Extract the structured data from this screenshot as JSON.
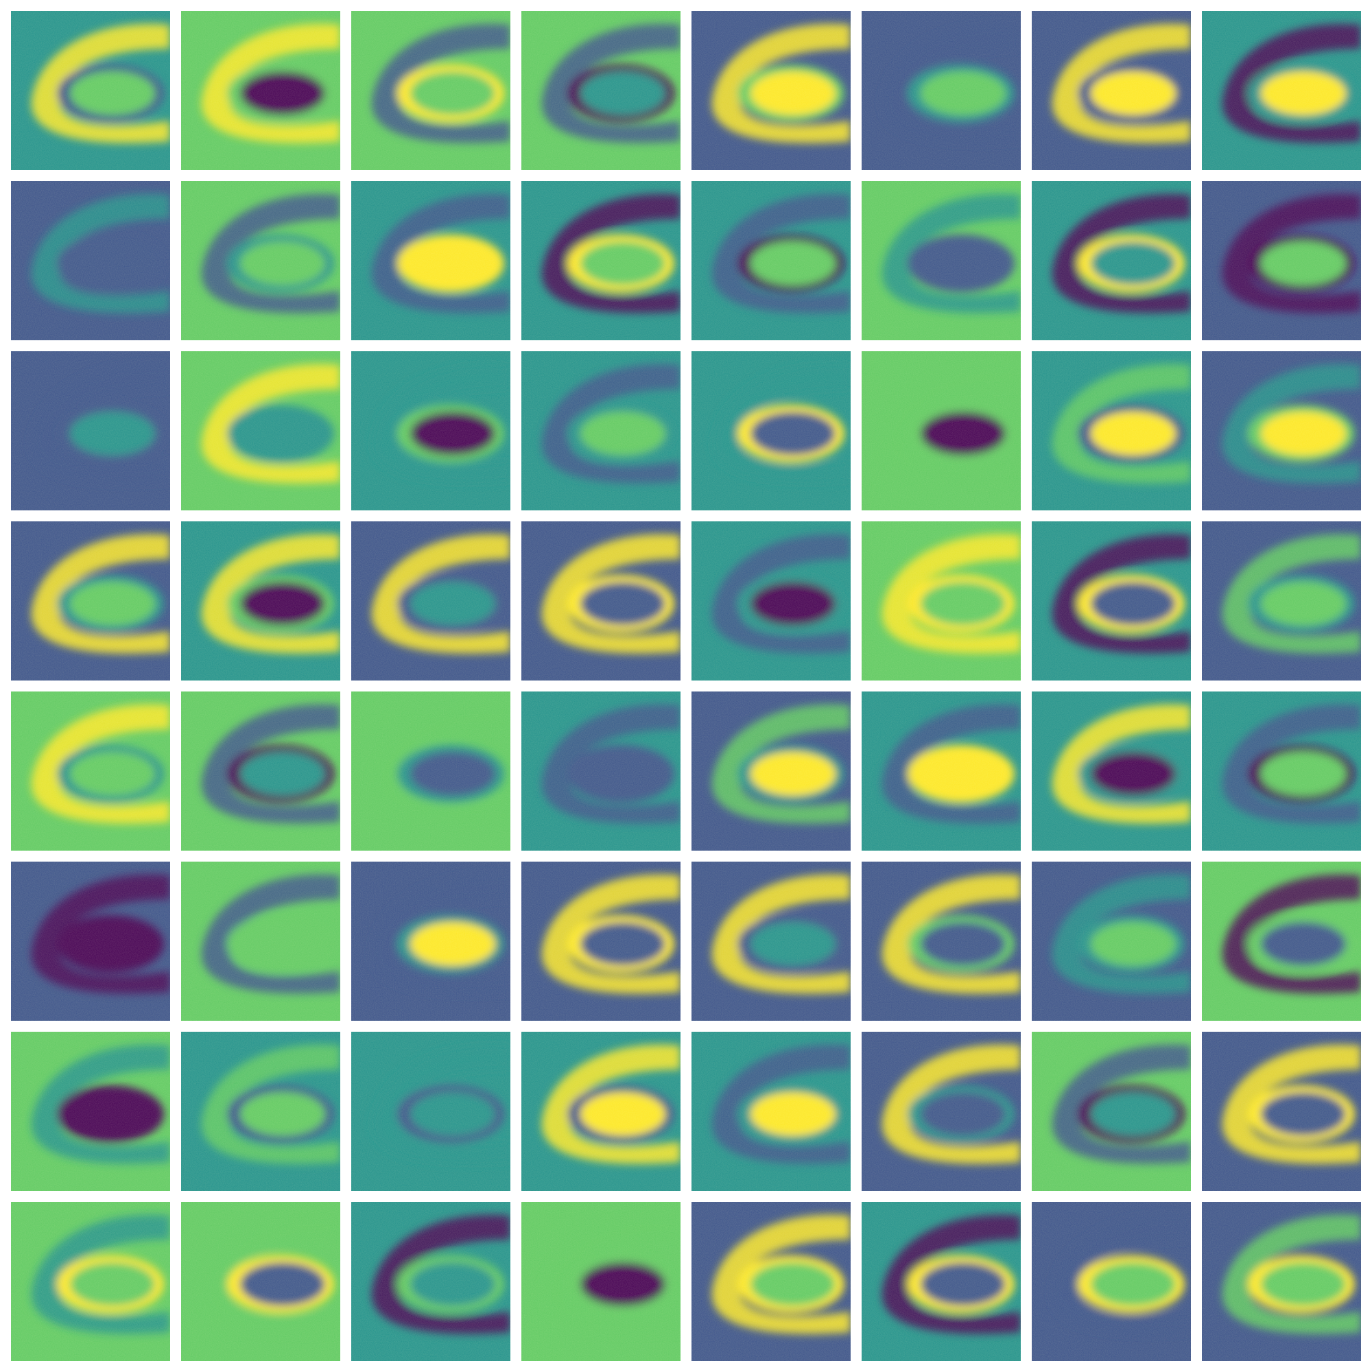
{
  "figure": {
    "rows": 8,
    "cols": 8,
    "colormap": "viridis",
    "colors": {
      "dark": "#440154",
      "mid": "#21918c",
      "light": "#fde725"
    }
  }
}
